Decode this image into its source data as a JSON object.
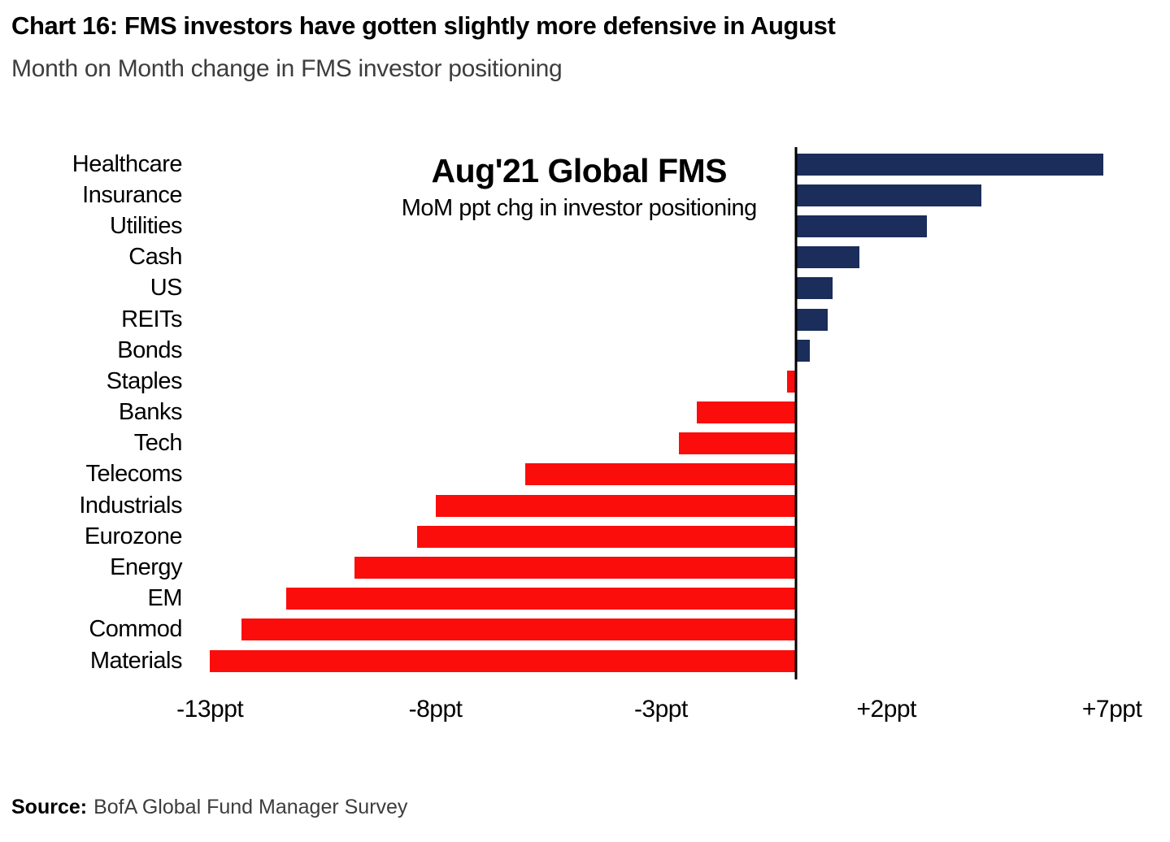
{
  "header": {
    "title": "Chart 16: FMS investors have gotten slightly more defensive in August",
    "subtitle": "Month on Month change in FMS investor positioning"
  },
  "chart_data": {
    "type": "bar",
    "orientation": "horizontal",
    "title": "Aug'21 Global FMS",
    "subtitle": "MoM ppt chg in investor positioning",
    "unit": "ppt",
    "categories": [
      "Healthcare",
      "Insurance",
      "Utilities",
      "Cash",
      "US",
      "REITs",
      "Bonds",
      "Staples",
      "Banks",
      "Tech",
      "Telecoms",
      "Industrials",
      "Eurozone",
      "Energy",
      "EM",
      "Commod",
      "Materials"
    ],
    "values": [
      6.8,
      4.1,
      2.9,
      1.4,
      0.8,
      0.7,
      0.3,
      -0.2,
      -2.2,
      -2.6,
      -6.0,
      -8.0,
      -8.4,
      -9.8,
      -11.3,
      -12.3,
      -13.0
    ],
    "xlim": [
      -13.4,
      7.8
    ],
    "x_ticks": [
      {
        "value": -13,
        "label": "-13ppt"
      },
      {
        "value": -8,
        "label": "-8ppt"
      },
      {
        "value": -3,
        "label": "-3ppt"
      },
      {
        "value": 2,
        "label": "+2ppt"
      },
      {
        "value": 7,
        "label": "+7ppt"
      }
    ],
    "colors": {
      "positive": "#1A2D5B",
      "negative": "#FB0D0C"
    },
    "grid": false,
    "legend": false
  },
  "source": {
    "label": "Source:",
    "text": "BofA Global Fund Manager Survey"
  }
}
